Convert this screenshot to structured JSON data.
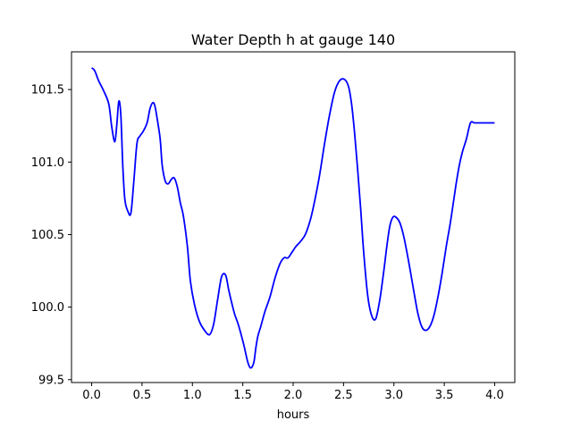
{
  "chart_data": {
    "type": "line",
    "title": "Water Depth h at gauge 140",
    "xlabel": "hours",
    "ylabel": "",
    "xlim": [
      -0.2,
      4.2
    ],
    "ylim": [
      99.48,
      101.76
    ],
    "x_ticks": [
      0.0,
      0.5,
      1.0,
      1.5,
      2.0,
      2.5,
      3.0,
      3.5,
      4.0
    ],
    "x_tick_labels": [
      "0.0",
      "0.5",
      "1.0",
      "1.5",
      "2.0",
      "2.5",
      "3.0",
      "3.5",
      "4.0"
    ],
    "y_ticks": [
      99.5,
      100.0,
      100.5,
      101.0,
      101.5
    ],
    "y_tick_labels": [
      "99.5",
      "100.0",
      "100.5",
      "101.0",
      "101.5"
    ],
    "grid": false,
    "series": [
      {
        "color": "#0000ff",
        "x": [
          0.0,
          0.03,
          0.07,
          0.12,
          0.17,
          0.2,
          0.23,
          0.25,
          0.27,
          0.29,
          0.31,
          0.33,
          0.36,
          0.39,
          0.42,
          0.45,
          0.48,
          0.51,
          0.55,
          0.58,
          0.61,
          0.63,
          0.65,
          0.68,
          0.7,
          0.73,
          0.76,
          0.79,
          0.82,
          0.85,
          0.88,
          0.91,
          0.95,
          0.98,
          1.02,
          1.07,
          1.12,
          1.17,
          1.21,
          1.25,
          1.29,
          1.33,
          1.36,
          1.39,
          1.42,
          1.46,
          1.51,
          1.55,
          1.58,
          1.61,
          1.63,
          1.65,
          1.68,
          1.72,
          1.77,
          1.82,
          1.87,
          1.91,
          1.95,
          1.99,
          2.03,
          2.07,
          2.12,
          2.17,
          2.21,
          2.26,
          2.31,
          2.36,
          2.41,
          2.46,
          2.51,
          2.55,
          2.58,
          2.61,
          2.64,
          2.67,
          2.7,
          2.74,
          2.78,
          2.82,
          2.86,
          2.9,
          2.93,
          2.96,
          2.99,
          3.02,
          3.06,
          3.1,
          3.15,
          3.2,
          3.24,
          3.28,
          3.32,
          3.36,
          3.4,
          3.44,
          3.48,
          3.52,
          3.56,
          3.59,
          3.62,
          3.65,
          3.68,
          3.72,
          3.76,
          3.8,
          3.84,
          3.88,
          3.92,
          3.96,
          4.0
        ],
        "y": [
          101.65,
          101.63,
          101.56,
          101.49,
          101.4,
          101.24,
          101.14,
          101.26,
          101.42,
          101.32,
          100.96,
          100.74,
          100.66,
          100.65,
          100.88,
          101.13,
          101.18,
          101.21,
          101.27,
          101.37,
          101.41,
          101.38,
          101.3,
          101.16,
          100.98,
          100.87,
          100.85,
          100.88,
          100.89,
          100.83,
          100.72,
          100.63,
          100.42,
          100.18,
          100.02,
          99.9,
          99.84,
          99.81,
          99.88,
          100.05,
          100.21,
          100.22,
          100.12,
          100.03,
          99.95,
          99.87,
          99.74,
          99.62,
          99.58,
          99.62,
          99.72,
          99.8,
          99.87,
          99.97,
          100.07,
          100.2,
          100.3,
          100.34,
          100.34,
          100.38,
          100.42,
          100.45,
          100.5,
          100.6,
          100.72,
          100.9,
          101.12,
          101.32,
          101.48,
          101.56,
          101.57,
          101.52,
          101.4,
          101.2,
          100.95,
          100.68,
          100.38,
          100.08,
          99.94,
          99.92,
          100.05,
          100.25,
          100.42,
          100.56,
          100.62,
          100.62,
          100.58,
          100.48,
          100.3,
          100.1,
          99.95,
          99.86,
          99.84,
          99.87,
          99.95,
          100.08,
          100.24,
          100.42,
          100.58,
          100.72,
          100.86,
          100.98,
          101.07,
          101.16,
          101.27,
          101.27,
          101.27,
          101.27,
          101.27,
          101.27,
          101.27
        ]
      }
    ]
  }
}
